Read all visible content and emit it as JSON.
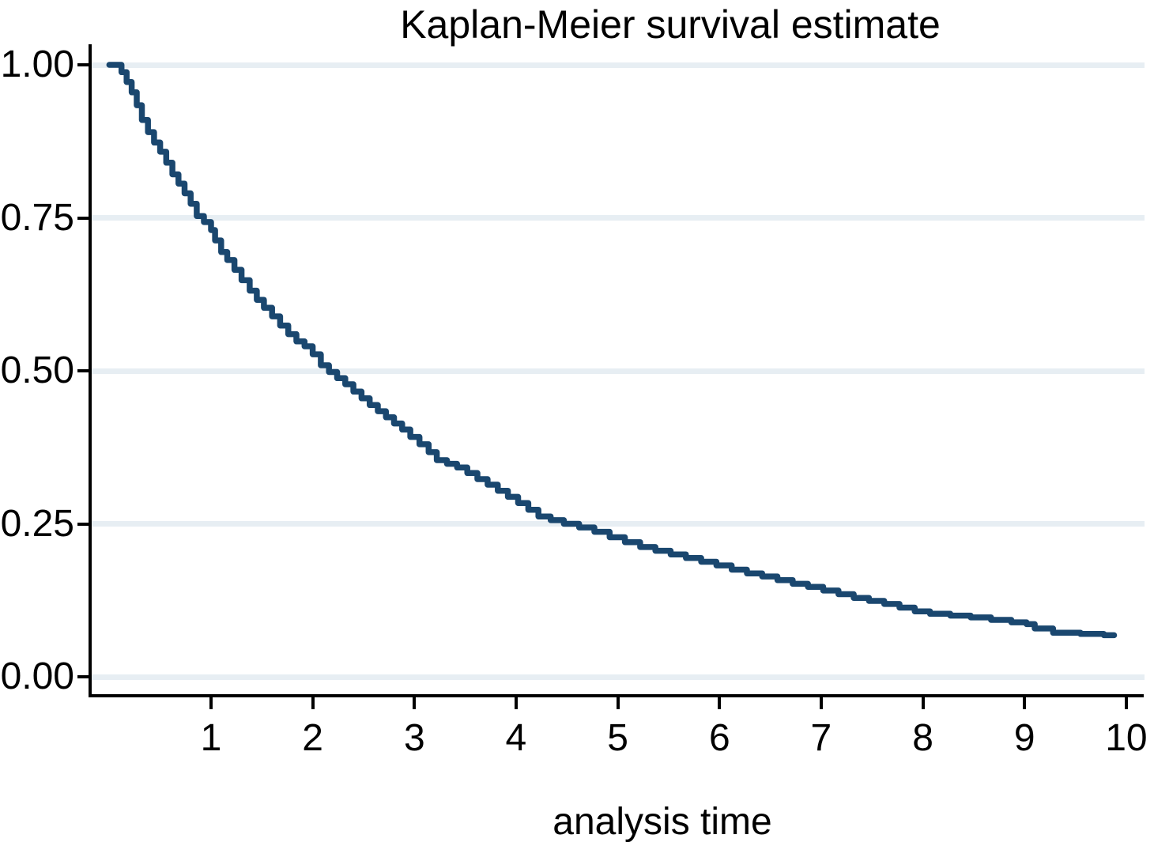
{
  "title": "Kaplan-Meier survival estimate",
  "x_axis": {
    "label": "analysis time",
    "tick_labels": [
      "1",
      "2",
      "3",
      "4",
      "5",
      "6",
      "7",
      "8",
      "9",
      "10"
    ]
  },
  "y_axis": {
    "tick_labels": [
      "0.00",
      "0.25",
      "0.50",
      "0.75",
      "1.00"
    ]
  },
  "colors": {
    "curve": "#1a476f",
    "gridline": "#e7eef3",
    "axis": "#000000",
    "background": "#ffffff",
    "text": "#000000"
  },
  "chart_data": {
    "type": "line",
    "subtype": "step-survival",
    "title": "Kaplan-Meier survival estimate",
    "xlabel": "analysis time",
    "ylabel": "",
    "xlim": [
      -0.17,
      10.17
    ],
    "ylim": [
      0,
      1.0
    ],
    "x_ticks": [
      1,
      2,
      3,
      4,
      5,
      6,
      7,
      8,
      9,
      10
    ],
    "y_ticks": [
      0.0,
      0.25,
      0.5,
      0.75,
      1.0
    ],
    "grid": "horizontal",
    "legend": "none",
    "series": [
      {
        "name": "survival estimate",
        "points": [
          [
            0.0,
            1.0
          ],
          [
            0.08,
            1.0
          ],
          [
            0.12,
            0.988
          ],
          [
            0.17,
            0.972
          ],
          [
            0.22,
            0.955
          ],
          [
            0.27,
            0.934
          ],
          [
            0.32,
            0.91
          ],
          [
            0.38,
            0.89
          ],
          [
            0.44,
            0.873
          ],
          [
            0.5,
            0.858
          ],
          [
            0.56,
            0.84
          ],
          [
            0.62,
            0.821
          ],
          [
            0.68,
            0.806
          ],
          [
            0.74,
            0.79
          ],
          [
            0.8,
            0.773
          ],
          [
            0.86,
            0.753
          ],
          [
            0.93,
            0.743
          ],
          [
            1.0,
            0.73
          ],
          [
            1.04,
            0.713
          ],
          [
            1.1,
            0.694
          ],
          [
            1.16,
            0.681
          ],
          [
            1.23,
            0.665
          ],
          [
            1.3,
            0.648
          ],
          [
            1.38,
            0.631
          ],
          [
            1.45,
            0.616
          ],
          [
            1.52,
            0.603
          ],
          [
            1.6,
            0.589
          ],
          [
            1.68,
            0.574
          ],
          [
            1.76,
            0.56
          ],
          [
            1.84,
            0.548
          ],
          [
            1.92,
            0.54
          ],
          [
            2.0,
            0.527
          ],
          [
            2.08,
            0.509
          ],
          [
            2.16,
            0.498
          ],
          [
            2.24,
            0.488
          ],
          [
            2.32,
            0.478
          ],
          [
            2.4,
            0.466
          ],
          [
            2.48,
            0.455
          ],
          [
            2.56,
            0.444
          ],
          [
            2.64,
            0.434
          ],
          [
            2.72,
            0.424
          ],
          [
            2.8,
            0.414
          ],
          [
            2.88,
            0.404
          ],
          [
            2.96,
            0.392
          ],
          [
            3.05,
            0.38
          ],
          [
            3.14,
            0.367
          ],
          [
            3.22,
            0.354
          ],
          [
            3.32,
            0.348
          ],
          [
            3.42,
            0.342
          ],
          [
            3.52,
            0.333
          ],
          [
            3.62,
            0.323
          ],
          [
            3.72,
            0.314
          ],
          [
            3.82,
            0.304
          ],
          [
            3.92,
            0.294
          ],
          [
            4.02,
            0.284
          ],
          [
            4.12,
            0.273
          ],
          [
            4.22,
            0.262
          ],
          [
            4.34,
            0.256
          ],
          [
            4.47,
            0.25
          ],
          [
            4.62,
            0.244
          ],
          [
            4.77,
            0.237
          ],
          [
            4.92,
            0.228
          ],
          [
            5.07,
            0.22
          ],
          [
            5.22,
            0.212
          ],
          [
            5.37,
            0.206
          ],
          [
            5.52,
            0.2
          ],
          [
            5.67,
            0.194
          ],
          [
            5.82,
            0.188
          ],
          [
            5.97,
            0.182
          ],
          [
            6.12,
            0.175
          ],
          [
            6.27,
            0.169
          ],
          [
            6.42,
            0.164
          ],
          [
            6.57,
            0.158
          ],
          [
            6.72,
            0.152
          ],
          [
            6.87,
            0.147
          ],
          [
            7.02,
            0.141
          ],
          [
            7.17,
            0.135
          ],
          [
            7.32,
            0.129
          ],
          [
            7.47,
            0.124
          ],
          [
            7.62,
            0.119
          ],
          [
            7.77,
            0.113
          ],
          [
            7.92,
            0.107
          ],
          [
            8.07,
            0.103
          ],
          [
            8.27,
            0.1
          ],
          [
            8.47,
            0.097
          ],
          [
            8.67,
            0.093
          ],
          [
            8.87,
            0.089
          ],
          [
            9.02,
            0.086
          ],
          [
            9.1,
            0.079
          ],
          [
            9.28,
            0.072
          ],
          [
            9.55,
            0.07
          ],
          [
            9.78,
            0.068
          ],
          [
            9.88,
            0.068
          ]
        ]
      }
    ]
  }
}
